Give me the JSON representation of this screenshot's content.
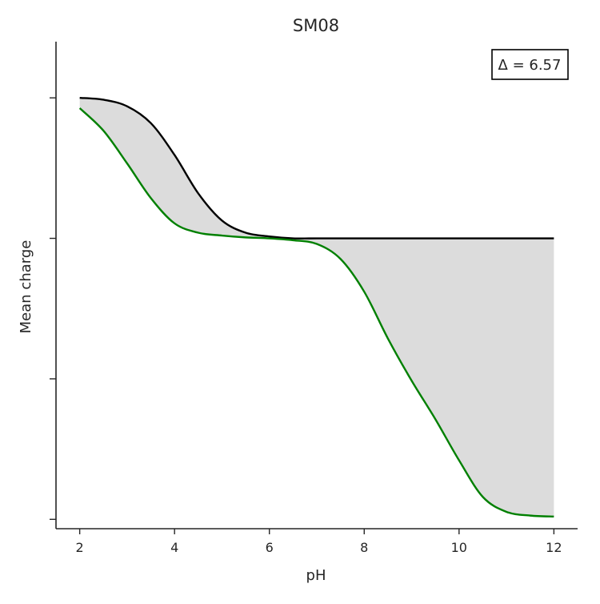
{
  "chart_data": {
    "type": "line",
    "title": "SM08",
    "xlabel": "pH",
    "ylabel": "Mean charge",
    "xlim": [
      1.5,
      12.5
    ],
    "ylim": [
      -3.1,
      2.1
    ],
    "x_ticks": [
      2,
      4,
      6,
      8,
      10,
      12
    ],
    "y_ticks": [
      -3,
      -1.5,
      0,
      1.5
    ],
    "y_tick_labels_visible": false,
    "grid": false,
    "annotation": "Δ = 6.57",
    "annotation_placement": "top-right",
    "fill_between_series": true,
    "fill_color": "#dcdcdc",
    "series": [
      {
        "color": "#000000",
        "x": [
          2.0,
          2.5,
          3.0,
          3.5,
          4.0,
          4.5,
          5.0,
          5.5,
          6.0,
          6.5,
          7.0,
          7.5,
          8.0,
          8.5,
          9.0,
          9.5,
          10.0,
          10.5,
          11.0,
          11.5,
          12.0
        ],
        "y": [
          1.5,
          1.48,
          1.41,
          1.23,
          0.89,
          0.48,
          0.19,
          0.06,
          0.02,
          0.0,
          0.0,
          0.0,
          0.0,
          0.0,
          0.0,
          0.0,
          0.0,
          0.0,
          0.0,
          0.0,
          0.0
        ]
      },
      {
        "color": "#008000",
        "x": [
          2.0,
          2.5,
          3.0,
          3.5,
          4.0,
          4.5,
          5.0,
          5.5,
          6.0,
          6.5,
          7.0,
          7.5,
          8.0,
          8.5,
          9.0,
          9.5,
          10.0,
          10.5,
          11.0,
          11.5,
          12.0
        ],
        "y": [
          1.39,
          1.15,
          0.8,
          0.43,
          0.16,
          0.06,
          0.03,
          0.01,
          0.0,
          -0.02,
          -0.06,
          -0.22,
          -0.57,
          -1.07,
          -1.52,
          -1.93,
          -2.37,
          -2.76,
          -2.92,
          -2.96,
          -2.97
        ]
      }
    ]
  }
}
